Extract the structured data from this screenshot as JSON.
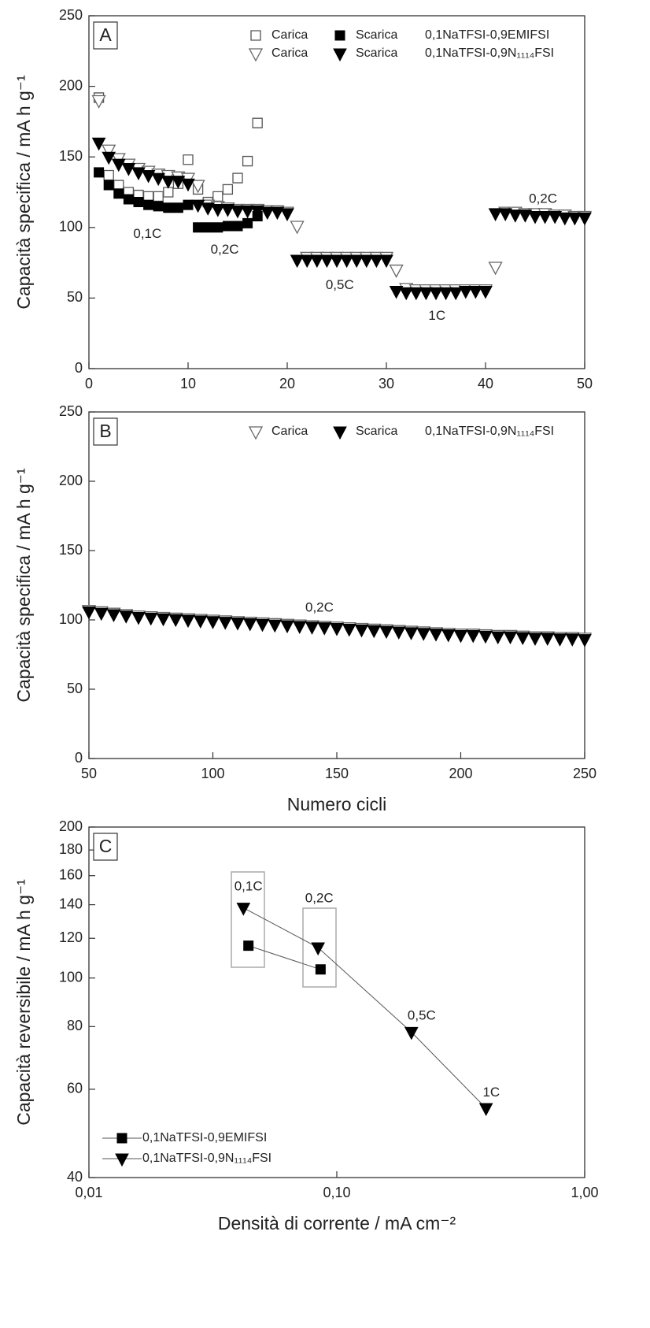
{
  "chart_data": [
    {
      "type": "scatter",
      "panel_label": "A",
      "xlim": [
        0,
        50
      ],
      "xticks": [
        0,
        10,
        20,
        30,
        40,
        50
      ],
      "ylim": [
        0,
        250
      ],
      "yticks": [
        0,
        50,
        100,
        150,
        200,
        250
      ],
      "ylabel": "Capacità specifica / mA h g⁻¹",
      "legend": "top-right",
      "electrolytes": [
        "0,1NaTFSI-0,9EMIFSI",
        "0,1NaTFSI-0,9N₁₁₁₄FSI"
      ],
      "series": [
        {
          "name": "Carica",
          "marker": "square-open",
          "color": "#555555",
          "x": [
            1,
            2,
            3,
            4,
            5,
            6,
            7,
            8,
            9,
            10,
            11,
            12,
            13,
            14,
            15,
            16,
            17
          ],
          "values": [
            192,
            137,
            130,
            125,
            123,
            122,
            122,
            125,
            131,
            148,
            127,
            118,
            122,
            127,
            135,
            147,
            174
          ]
        },
        {
          "name": "Scarica",
          "marker": "square",
          "color": "#000000",
          "x": [
            1,
            2,
            3,
            4,
            5,
            6,
            7,
            8,
            9,
            10,
            11,
            12,
            13,
            14,
            15,
            16,
            17
          ],
          "values": [
            139,
            130,
            124,
            120,
            118,
            116,
            115,
            114,
            114,
            116,
            100,
            100,
            100,
            101,
            101,
            103,
            108
          ]
        },
        {
          "name": "Carica",
          "marker": "triangle-open",
          "color": "#666666",
          "x": [
            1,
            2,
            3,
            4,
            5,
            6,
            7,
            8,
            9,
            10,
            11,
            12,
            13,
            14,
            15,
            16,
            17,
            18,
            19,
            20,
            21,
            22,
            23,
            24,
            25,
            26,
            27,
            28,
            29,
            30,
            31,
            32,
            33,
            34,
            35,
            36,
            37,
            38,
            39,
            40,
            41,
            42,
            43,
            44,
            45,
            46,
            47,
            48,
            49,
            50
          ],
          "values": [
            190,
            155,
            149,
            145,
            142,
            140,
            138,
            137,
            136,
            135,
            130,
            116,
            115,
            114,
            113,
            113,
            113,
            112,
            112,
            111,
            101,
            79,
            79,
            79,
            79,
            79,
            79,
            79,
            79,
            79,
            70,
            57,
            56,
            56,
            56,
            56,
            56,
            56,
            56,
            56,
            72,
            111,
            111,
            110,
            110,
            110,
            109,
            109,
            108,
            108
          ]
        },
        {
          "name": "Scarica",
          "marker": "triangle",
          "color": "#000000",
          "x": [
            1,
            2,
            3,
            4,
            5,
            6,
            7,
            8,
            9,
            10,
            11,
            12,
            13,
            14,
            15,
            16,
            17,
            18,
            19,
            20,
            21,
            22,
            23,
            24,
            25,
            26,
            27,
            28,
            29,
            30,
            31,
            32,
            33,
            34,
            35,
            36,
            37,
            38,
            39,
            40,
            41,
            42,
            43,
            44,
            45,
            46,
            47,
            48,
            49,
            50
          ],
          "values": [
            160,
            150,
            145,
            142,
            139,
            137,
            135,
            133,
            133,
            131,
            116,
            114,
            113,
            113,
            112,
            112,
            112,
            111,
            111,
            110,
            77,
            77,
            77,
            77,
            77,
            77,
            77,
            77,
            77,
            77,
            55,
            54,
            54,
            54,
            54,
            54,
            54,
            55,
            55,
            55,
            110,
            110,
            109,
            109,
            108,
            108,
            108,
            107,
            107,
            107
          ]
        }
      ],
      "annotations": [
        {
          "text": "0,1C",
          "x": 5.9,
          "y": 95
        },
        {
          "text": "0,2C",
          "x": 13.7,
          "y": 84
        },
        {
          "text": "0,5C",
          "x": 25.3,
          "y": 59
        },
        {
          "text": "1C",
          "x": 35.1,
          "y": 37
        },
        {
          "text": "0,2C",
          "x": 45.8,
          "y": 120
        }
      ]
    },
    {
      "type": "scatter",
      "panel_label": "B",
      "xlim": [
        50,
        250
      ],
      "xticks": [
        50,
        100,
        150,
        200,
        250
      ],
      "ylim": [
        0,
        250
      ],
      "yticks": [
        0,
        50,
        100,
        150,
        200,
        250
      ],
      "ylabel": "Capacità specifica / mA h g⁻¹",
      "xlabel": "Numero cicli",
      "legend": "top-right",
      "electrolytes": [
        "0,1NaTFSI-0,9N₁₁₁₄FSI"
      ],
      "series": [
        {
          "name": "Carica",
          "marker": "triangle-open",
          "color": "#666666",
          "x": [
            50,
            55,
            60,
            65,
            70,
            75,
            80,
            85,
            90,
            95,
            100,
            105,
            110,
            115,
            120,
            125,
            130,
            135,
            140,
            145,
            150,
            155,
            160,
            165,
            170,
            175,
            180,
            185,
            190,
            195,
            200,
            205,
            210,
            215,
            220,
            225,
            230,
            235,
            240,
            245,
            250
          ],
          "values": [
            107,
            106,
            105,
            104,
            103,
            102.5,
            102,
            101.5,
            101,
            100.5,
            100,
            99.5,
            99,
            98.5,
            98,
            97.5,
            97,
            96.5,
            96,
            95.5,
            95,
            94.5,
            94,
            93.5,
            93,
            92.5,
            92,
            91.5,
            91,
            90.5,
            90,
            90,
            89.5,
            89,
            89,
            88.5,
            88,
            88,
            87.5,
            87.5,
            87
          ]
        },
        {
          "name": "Scarica",
          "marker": "triangle",
          "color": "#000000",
          "x": [
            50,
            55,
            60,
            65,
            70,
            75,
            80,
            85,
            90,
            95,
            100,
            105,
            110,
            115,
            120,
            125,
            130,
            135,
            140,
            145,
            150,
            155,
            160,
            165,
            170,
            175,
            180,
            185,
            190,
            195,
            200,
            205,
            210,
            215,
            220,
            225,
            230,
            235,
            240,
            245,
            250
          ],
          "values": [
            106,
            105,
            104,
            103,
            102,
            101.5,
            101,
            100.5,
            100,
            99.5,
            99,
            98.5,
            98,
            97.5,
            97,
            96.5,
            96,
            95.5,
            95,
            94.5,
            94,
            93.5,
            93,
            92.5,
            92,
            91.5,
            91,
            90.5,
            90,
            89.5,
            89,
            89,
            88.5,
            88,
            88,
            87.5,
            87,
            87,
            86.5,
            86.5,
            86
          ]
        }
      ],
      "annotations": [
        {
          "text": "0,2C",
          "x": 143,
          "y": 108.5
        }
      ]
    },
    {
      "type": "line",
      "panel_label": "C",
      "xscale": "log",
      "yscale": "log",
      "xlim": [
        0.01,
        1
      ],
      "xticks": [
        {
          "value": 0.01,
          "label": "0,01"
        },
        {
          "value": 0.1,
          "label": "0,10"
        },
        {
          "value": 1,
          "label": "1,00"
        }
      ],
      "ylim": [
        40,
        200
      ],
      "yticks": [
        40,
        60,
        80,
        100,
        120,
        140,
        160,
        180,
        200
      ],
      "ylabel": "Capacità reversibile / mA h g⁻¹",
      "xlabel": "Densità di corrente / mA cm⁻²",
      "legend": "bottom-left",
      "series": [
        {
          "name": "0,1NaTFSI-0,9EMIFSI",
          "marker": "square",
          "color": "#000000",
          "x": [
            0.044,
            0.086
          ],
          "values": [
            116,
            104
          ]
        },
        {
          "name": "0,1NaTFSI-0,9N₁₁₁₄FSI",
          "marker": "triangle",
          "color": "#000000",
          "x": [
            0.042,
            0.084,
            0.2,
            0.4
          ],
          "values": [
            138,
            115,
            78,
            55
          ]
        }
      ],
      "annotations": [
        {
          "text": "0,1C",
          "x": 0.044,
          "y": 152
        },
        {
          "text": "0,2C",
          "x": 0.085,
          "y": 144
        },
        {
          "text": "0,5C",
          "x": 0.22,
          "y": 84
        },
        {
          "text": "1C",
          "x": 0.42,
          "y": 59
        }
      ]
    }
  ]
}
